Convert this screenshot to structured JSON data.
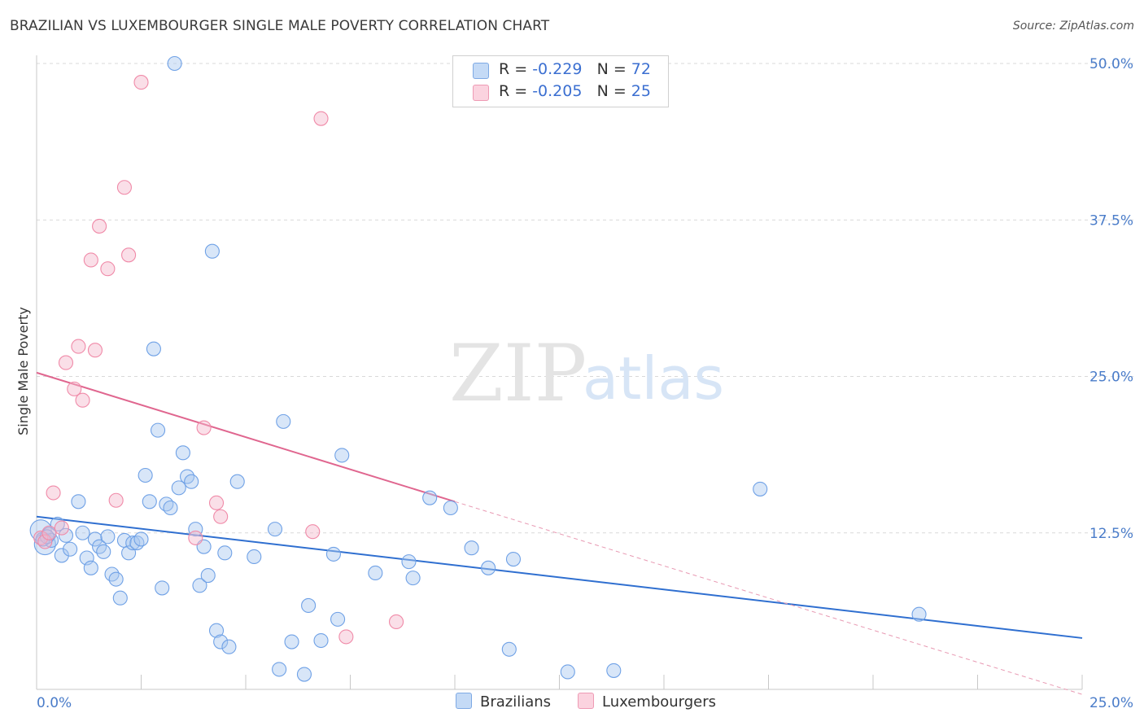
{
  "title": "BRAZILIAN VS LUXEMBOURGER SINGLE MALE POVERTY CORRELATION CHART",
  "source": "Source: ZipAtlas.com",
  "watermark": {
    "zip": "ZIP",
    "atlas": "atlas"
  },
  "legend": {
    "rows": [
      {
        "r_label": "R = ",
        "r_value": "-0.229",
        "n_label": "N = ",
        "n_value": "72",
        "color": "#a8c8f0"
      },
      {
        "r_label": "R = ",
        "r_value": "-0.205",
        "n_label": "N = ",
        "n_value": "25",
        "color": "#f5b8cb"
      }
    ]
  },
  "bottom_legend": [
    {
      "label": "Brazilians",
      "color": "#a8c8f0"
    },
    {
      "label": "Luxembourgers",
      "color": "#f5b8cb"
    }
  ],
  "chart_data": {
    "type": "scatter",
    "title": "BRAZILIAN VS LUXEMBOURGER SINGLE MALE POVERTY CORRELATION CHART",
    "xlabel": "",
    "ylabel": "Single Male Poverty",
    "xlim": [
      0,
      25
    ],
    "ylim": [
      0,
      50
    ],
    "x_tick_labels": [
      "0.0%",
      "25.0%"
    ],
    "y_ticks": [
      12.5,
      25.0,
      37.5,
      50.0
    ],
    "y_tick_labels": [
      "12.5%",
      "25.0%",
      "37.5%",
      "50.0%"
    ],
    "grid": true,
    "series": [
      {
        "name": "Brazilians",
        "color": "#6fa1e6",
        "points": [
          [
            0.1,
            12.7
          ],
          [
            0.2,
            11.6
          ],
          [
            0.3,
            12.4
          ],
          [
            0.35,
            11.9
          ],
          [
            0.5,
            13.2
          ],
          [
            0.6,
            10.7
          ],
          [
            0.7,
            12.3
          ],
          [
            0.8,
            11.2
          ],
          [
            1.0,
            15.0
          ],
          [
            1.1,
            12.5
          ],
          [
            1.2,
            10.5
          ],
          [
            1.3,
            9.7
          ],
          [
            1.4,
            12.0
          ],
          [
            1.5,
            11.4
          ],
          [
            1.6,
            11.0
          ],
          [
            1.7,
            12.2
          ],
          [
            1.8,
            9.2
          ],
          [
            1.9,
            8.8
          ],
          [
            2.0,
            7.3
          ],
          [
            2.1,
            11.9
          ],
          [
            2.2,
            10.9
          ],
          [
            2.3,
            11.7
          ],
          [
            2.4,
            11.7
          ],
          [
            2.5,
            12.0
          ],
          [
            2.6,
            17.1
          ],
          [
            2.7,
            15.0
          ],
          [
            2.8,
            27.2
          ],
          [
            2.9,
            20.7
          ],
          [
            3.0,
            8.1
          ],
          [
            3.1,
            14.8
          ],
          [
            3.2,
            14.5
          ],
          [
            3.3,
            50.0
          ],
          [
            3.4,
            16.1
          ],
          [
            3.5,
            18.9
          ],
          [
            3.6,
            17.0
          ],
          [
            3.7,
            16.6
          ],
          [
            3.8,
            12.8
          ],
          [
            3.9,
            8.3
          ],
          [
            4.0,
            11.4
          ],
          [
            4.1,
            9.1
          ],
          [
            4.2,
            35.0
          ],
          [
            4.3,
            4.7
          ],
          [
            4.4,
            3.8
          ],
          [
            4.5,
            10.9
          ],
          [
            4.6,
            3.4
          ],
          [
            4.8,
            16.6
          ],
          [
            5.2,
            10.6
          ],
          [
            5.7,
            12.8
          ],
          [
            5.8,
            1.6
          ],
          [
            5.9,
            21.4
          ],
          [
            6.1,
            3.8
          ],
          [
            6.4,
            1.2
          ],
          [
            6.5,
            6.7
          ],
          [
            6.8,
            3.9
          ],
          [
            7.1,
            10.8
          ],
          [
            7.2,
            5.6
          ],
          [
            7.3,
            18.7
          ],
          [
            8.1,
            9.3
          ],
          [
            8.9,
            10.2
          ],
          [
            9.0,
            8.9
          ],
          [
            9.4,
            15.3
          ],
          [
            9.9,
            14.5
          ],
          [
            10.4,
            11.3
          ],
          [
            10.8,
            9.7
          ],
          [
            11.3,
            3.2
          ],
          [
            11.4,
            10.4
          ],
          [
            12.7,
            1.4
          ],
          [
            13.8,
            1.5
          ],
          [
            17.3,
            16.0
          ],
          [
            21.1,
            6.0
          ],
          [
            0.15,
            12.0
          ],
          [
            0.25,
            12.2
          ]
        ],
        "trend": {
          "x": [
            0,
            25
          ],
          "y": [
            13.8,
            4.1
          ]
        }
      },
      {
        "name": "Luxembourgers",
        "color": "#f08aa8",
        "points": [
          [
            0.1,
            12.1
          ],
          [
            0.2,
            11.8
          ],
          [
            0.3,
            12.5
          ],
          [
            0.4,
            15.7
          ],
          [
            0.6,
            12.9
          ],
          [
            0.7,
            26.1
          ],
          [
            0.9,
            24.0
          ],
          [
            1.0,
            27.4
          ],
          [
            1.1,
            23.1
          ],
          [
            1.3,
            34.3
          ],
          [
            1.4,
            27.1
          ],
          [
            1.5,
            37.0
          ],
          [
            1.7,
            33.6
          ],
          [
            1.9,
            15.1
          ],
          [
            2.1,
            40.1
          ],
          [
            2.2,
            34.7
          ],
          [
            2.5,
            48.5
          ],
          [
            3.8,
            12.1
          ],
          [
            4.0,
            20.9
          ],
          [
            4.3,
            14.9
          ],
          [
            4.4,
            13.8
          ],
          [
            6.6,
            12.6
          ],
          [
            6.8,
            45.6
          ],
          [
            7.4,
            4.2
          ],
          [
            8.6,
            5.4
          ]
        ],
        "trend": {
          "x": [
            0,
            10
          ],
          "y": [
            25.3,
            15.0
          ]
        },
        "trend_extension": {
          "x": [
            10,
            25
          ],
          "y": [
            15.0,
            -0.4
          ]
        }
      }
    ]
  }
}
